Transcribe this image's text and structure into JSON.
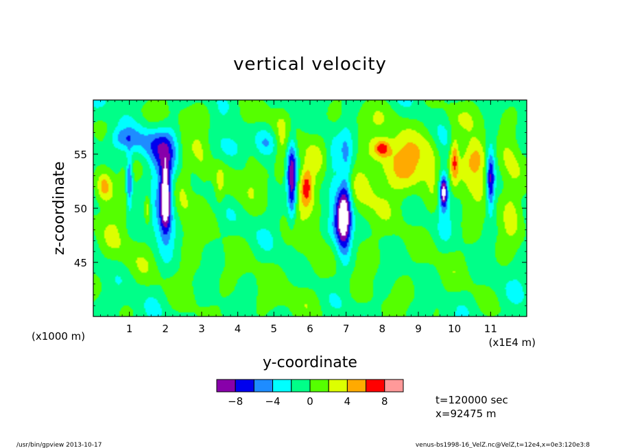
{
  "chart_data": {
    "type": "heatmap",
    "title": "vertical velocity",
    "xlabel": "y-coordinate",
    "ylabel": "z-coordinate",
    "x_unit_left": "(x1000 m)",
    "x_unit_right": "(x1E4 m)",
    "xlim": [
      0,
      12
    ],
    "ylim": [
      40,
      60
    ],
    "x_ticks": [
      "1",
      "2",
      "3",
      "4",
      "5",
      "6",
      "7",
      "8",
      "9",
      "10",
      "11"
    ],
    "y_ticks": [
      "45",
      "50",
      "55"
    ],
    "y_tick_values": [
      45,
      50,
      55
    ],
    "colorbar": {
      "levels": [
        -10,
        -8,
        -6,
        -4,
        -2,
        0,
        2,
        4,
        6,
        8,
        10
      ],
      "labels": [
        "-8",
        "-4",
        "0",
        "4",
        "8"
      ],
      "label_values": [
        -8,
        -4,
        0,
        4,
        8
      ],
      "colors": [
        "#8800aa",
        "#0000ee",
        "#1e8cff",
        "#00ffff",
        "#00ff88",
        "#55ff00",
        "#ddff00",
        "#ffaa00",
        "#ff0000",
        "#ff9999"
      ]
    },
    "base_value": -1.0,
    "features": [
      {
        "y": 2.0,
        "z": 51.0,
        "w": -11.5,
        "sy": 0.1,
        "sz": 2.0
      },
      {
        "y": 1.95,
        "z": 50.0,
        "w": -4.0,
        "sy": 0.25,
        "sz": 3.5
      },
      {
        "y": 2.0,
        "z": 55.5,
        "w": -3.5,
        "sy": 0.35,
        "sz": 1.5
      },
      {
        "y": 1.0,
        "z": 52.5,
        "w": -6.5,
        "sy": 0.06,
        "sz": 1.8
      },
      {
        "y": 1.2,
        "z": 56.0,
        "w": -2.5,
        "sy": 0.6,
        "sz": 1.0
      },
      {
        "y": 0.3,
        "z": 52.0,
        "w": 5.5,
        "sy": 0.15,
        "sz": 1.0
      },
      {
        "y": 0.6,
        "z": 51.0,
        "w": 2.5,
        "sy": 0.35,
        "sz": 2.5
      },
      {
        "y": 1.5,
        "z": 50.0,
        "w": 5.0,
        "sy": 0.07,
        "sz": 1.0
      },
      {
        "y": 2.5,
        "z": 52.0,
        "w": 3.0,
        "sy": 0.2,
        "sz": 4.0
      },
      {
        "y": 3.0,
        "z": 54.0,
        "w": 3.0,
        "sy": 0.2,
        "sz": 3.0
      },
      {
        "y": 3.5,
        "z": 52.0,
        "w": 2.5,
        "sy": 0.1,
        "sz": 1.5
      },
      {
        "y": 4.0,
        "z": 51.5,
        "w": 2.0,
        "sy": 0.3,
        "sz": 1.5
      },
      {
        "y": 4.4,
        "z": 54.0,
        "w": 2.0,
        "sy": 0.2,
        "sz": 2.5
      },
      {
        "y": 3.8,
        "z": 55.5,
        "w": -2.5,
        "sy": 0.25,
        "sz": 1.0
      },
      {
        "y": 5.5,
        "z": 52.5,
        "w": -9.0,
        "sy": 0.09,
        "sz": 2.5
      },
      {
        "y": 5.9,
        "z": 52.0,
        "w": 5.5,
        "sy": 0.12,
        "sz": 1.2
      },
      {
        "y": 6.0,
        "z": 51.5,
        "w": 3.0,
        "sy": 0.4,
        "sz": 4.0
      },
      {
        "y": 5.2,
        "z": 55.0,
        "w": 3.0,
        "sy": 0.12,
        "sz": 2.0
      },
      {
        "y": 6.9,
        "z": 49.0,
        "w": -10.0,
        "sy": 0.15,
        "sz": 2.0
      },
      {
        "y": 7.0,
        "z": 51.0,
        "w": -4.0,
        "sy": 0.12,
        "sz": 4.0
      },
      {
        "y": 7.5,
        "z": 52.0,
        "w": 2.5,
        "sy": 0.3,
        "sz": 3.0
      },
      {
        "y": 8.3,
        "z": 54.0,
        "w": 4.5,
        "sy": 0.45,
        "sz": 2.5
      },
      {
        "y": 8.0,
        "z": 55.5,
        "w": 6.0,
        "sy": 0.15,
        "sz": 0.5
      },
      {
        "y": 8.9,
        "z": 54.0,
        "w": 3.0,
        "sy": 0.3,
        "sz": 2.0
      },
      {
        "y": 9.5,
        "z": 52.0,
        "w": 2.5,
        "sy": 0.25,
        "sz": 2.0
      },
      {
        "y": 9.3,
        "z": 55.5,
        "w": 2.0,
        "sy": 0.2,
        "sz": 1.5
      },
      {
        "y": 9.7,
        "z": 51.5,
        "w": -10.0,
        "sy": 0.07,
        "sz": 1.0
      },
      {
        "y": 9.7,
        "z": 52.0,
        "w": -4.0,
        "sy": 0.15,
        "sz": 2.5
      },
      {
        "y": 10.0,
        "z": 54.5,
        "w": 5.5,
        "sy": 0.08,
        "sz": 1.5
      },
      {
        "y": 10.5,
        "z": 53.5,
        "w": 3.0,
        "sy": 0.45,
        "sz": 2.5
      },
      {
        "y": 10.6,
        "z": 54.5,
        "w": 5.5,
        "sy": 0.25,
        "sz": 1.2
      },
      {
        "y": 11.0,
        "z": 52.5,
        "w": -8.0,
        "sy": 0.08,
        "sz": 2.0
      },
      {
        "y": 11.0,
        "z": 55.0,
        "w": -3.0,
        "sy": 0.2,
        "sz": 1.5
      },
      {
        "y": 11.6,
        "z": 53.0,
        "w": 3.0,
        "sy": 0.25,
        "sz": 3.0
      },
      {
        "y": 11.5,
        "z": 50.0,
        "w": 2.0,
        "sy": 0.2,
        "sz": 2.0
      },
      {
        "y": 3.0,
        "z": 44.0,
        "w": 1.2,
        "sy": 1.5,
        "sz": 2.5
      },
      {
        "y": 7.5,
        "z": 46.0,
        "w": 1.2,
        "sy": 1.2,
        "sz": 2.0
      },
      {
        "y": 1.0,
        "z": 46.0,
        "w": 1.2,
        "sy": 0.8,
        "sz": 2.0
      },
      {
        "y": 9.0,
        "z": 42.0,
        "w": 1.2,
        "sy": 0.8,
        "sz": 1.5
      },
      {
        "y": 10.5,
        "z": 46.0,
        "w": 1.2,
        "sy": 0.8,
        "sz": 2.0
      },
      {
        "y": 5.5,
        "z": 41.5,
        "w": 1.2,
        "sy": 1.0,
        "sz": 1.5
      },
      {
        "y": 2.0,
        "z": 58.5,
        "w": 1.2,
        "sy": 1.0,
        "sz": 1.0
      },
      {
        "y": 7.5,
        "z": 58.5,
        "w": 1.2,
        "sy": 0.8,
        "sz": 1.0
      },
      {
        "y": 4.5,
        "z": 58.5,
        "w": 1.2,
        "sy": 0.5,
        "sz": 1.0
      },
      {
        "y": 10.5,
        "z": 58.5,
        "w": 1.2,
        "sy": 1.0,
        "sz": 1.0
      },
      {
        "y": 0.8,
        "z": 56.5,
        "w": -2.5,
        "sy": 0.25,
        "sz": 0.6
      },
      {
        "y": 4.8,
        "z": 56.0,
        "w": -2.5,
        "sy": 0.2,
        "sz": 0.8
      },
      {
        "y": 6.6,
        "z": 54.0,
        "w": -2.5,
        "sy": 0.15,
        "sz": 1.5
      },
      {
        "y": 6.6,
        "z": 48.0,
        "w": -3.0,
        "sy": 0.2,
        "sz": 1.2
      }
    ]
  },
  "info": {
    "time": "t=120000 sec",
    "position": "x=92475 m"
  },
  "footer": {
    "left": "/usr/bin/gpview   2013-10-17",
    "right": "venus-bs1998-16_VelZ.nc@VelZ,t=12e4,x=0e3:120e3:8"
  }
}
